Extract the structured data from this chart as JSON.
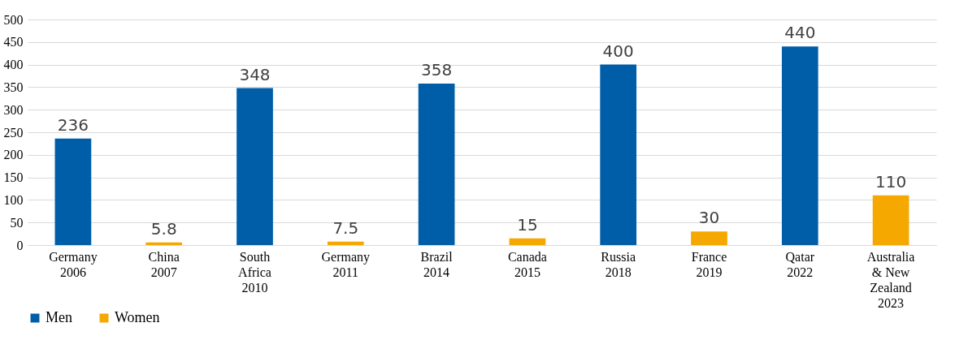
{
  "chart_data": {
    "type": "bar",
    "categories": [
      "Germany 2006",
      "China 2007",
      "South Africa 2010",
      "Germany 2011",
      "Brazil 2014",
      "Canada 2015",
      "Russia 2018",
      "France 2019",
      "Qatar 2022",
      "Australia & New Zealand 2023"
    ],
    "series": [
      {
        "name": "Men",
        "color": "#005ea8",
        "values": [
          236,
          null,
          348,
          null,
          358,
          null,
          400,
          null,
          440,
          null
        ]
      },
      {
        "name": "Women",
        "color": "#f5a800",
        "values": [
          null,
          5.8,
          null,
          7.5,
          null,
          15,
          null,
          30,
          null,
          110
        ]
      }
    ],
    "ylim": [
      0,
      500
    ],
    "yticks": [
      0,
      50,
      100,
      150,
      200,
      250,
      300,
      350,
      400,
      450,
      500
    ],
    "grid": "y",
    "legend": "bottom",
    "data_labels": true
  }
}
